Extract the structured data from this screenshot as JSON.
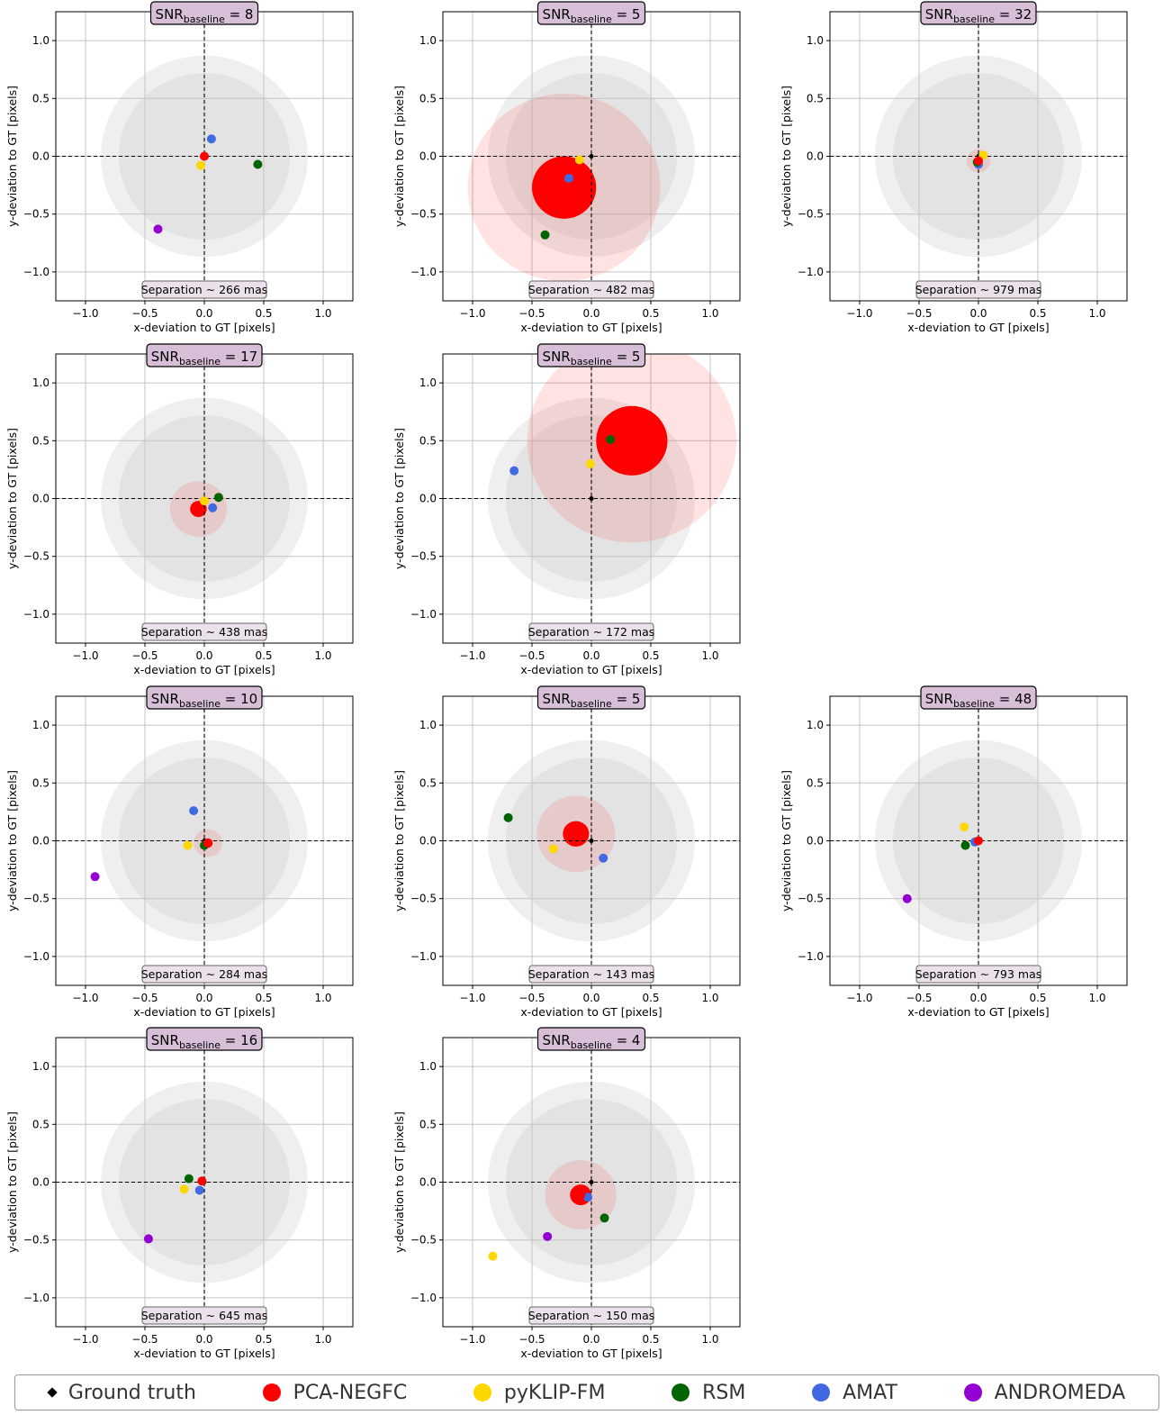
{
  "axis_labels": {
    "x": "x-deviation to GT [pixels]",
    "y": "y-deviation to GT [pixels]"
  },
  "tick_values": [
    -1.0,
    -0.5,
    0.0,
    0.5,
    1.0
  ],
  "tick_labels": [
    "−1.0",
    "−0.5",
    "0.0",
    "0.5",
    "1.0"
  ],
  "title_prefix": "SNR",
  "title_subscript": "baseline",
  "separation_prefix": "Separation ~ ",
  "separation_unit": " mas",
  "legend": [
    {
      "name": "Ground truth",
      "color": "#000000",
      "marker": "diamond"
    },
    {
      "name": "PCA-NEGFC",
      "color": "#ff0000",
      "marker": "circle"
    },
    {
      "name": "pyKLIP-FM",
      "color": "#ffd700",
      "marker": "circle"
    },
    {
      "name": "RSM",
      "color": "#006400",
      "marker": "circle"
    },
    {
      "name": "AMAT",
      "color": "#4169e1",
      "marker": "circle"
    },
    {
      "name": "ANDROMEDA",
      "color": "#9400d3",
      "marker": "circle"
    }
  ],
  "chart_data": [
    {
      "type": "scatter",
      "snr_baseline": 8,
      "separation_mas": 266,
      "xlim": [
        -1.25,
        1.25
      ],
      "ylim": [
        -1.25,
        1.25
      ],
      "points": {
        "PCA-NEGFC": [
          0.0,
          0.0
        ],
        "pyKLIP-FM": [
          -0.03,
          -0.08
        ],
        "RSM": [
          0.45,
          -0.07
        ],
        "AMAT": [
          0.06,
          0.15
        ],
        "ANDROMEDA": [
          -0.39,
          -0.63
        ]
      },
      "pca_sigma": 0.0,
      "pca_sigma3": 0.0
    },
    {
      "type": "scatter",
      "snr_baseline": 5,
      "separation_mas": 482,
      "xlim": [
        -1.25,
        1.25
      ],
      "ylim": [
        -1.25,
        1.25
      ],
      "points": {
        "PCA-NEGFC": [
          -0.23,
          -0.27
        ],
        "pyKLIP-FM": [
          -0.1,
          -0.03
        ],
        "RSM": [
          -0.39,
          -0.68
        ],
        "AMAT": [
          -0.19,
          -0.19
        ]
      },
      "pca_sigma": 0.27,
      "pca_sigma3": 0.81
    },
    {
      "type": "scatter",
      "snr_baseline": 32,
      "separation_mas": 979,
      "xlim": [
        -1.25,
        1.25
      ],
      "ylim": [
        -1.25,
        1.25
      ],
      "points": {
        "PCA-NEGFC": [
          0.0,
          -0.04
        ],
        "pyKLIP-FM": [
          0.04,
          0.01
        ],
        "RSM": [
          -0.01,
          -0.05
        ],
        "AMAT": [
          0.0,
          -0.07
        ]
      },
      "pca_sigma": 0.02,
      "pca_sigma3": 0.1
    },
    {
      "type": "scatter",
      "snr_baseline": 17,
      "separation_mas": 438,
      "xlim": [
        -1.25,
        1.25
      ],
      "ylim": [
        -1.25,
        1.25
      ],
      "points": {
        "PCA-NEGFC": [
          -0.05,
          -0.09
        ],
        "pyKLIP-FM": [
          0.0,
          -0.02
        ],
        "RSM": [
          0.12,
          0.01
        ],
        "AMAT": [
          0.07,
          -0.08
        ]
      },
      "pca_sigma": 0.07,
      "pca_sigma3": 0.24
    },
    {
      "type": "scatter",
      "snr_baseline": 5,
      "separation_mas": 172,
      "xlim": [
        -1.25,
        1.25
      ],
      "ylim": [
        -1.25,
        1.25
      ],
      "points": {
        "PCA-NEGFC": [
          0.34,
          0.5
        ],
        "pyKLIP-FM": [
          -0.01,
          0.3
        ],
        "RSM": [
          0.16,
          0.51
        ],
        "AMAT": [
          -0.65,
          0.24
        ]
      },
      "pca_sigma": 0.3,
      "pca_sigma3": 0.88
    },
    {
      "type": "scatter",
      "snr_baseline": 10,
      "separation_mas": 284,
      "xlim": [
        -1.25,
        1.25
      ],
      "ylim": [
        -1.25,
        1.25
      ],
      "points": {
        "PCA-NEGFC": [
          0.03,
          -0.02
        ],
        "pyKLIP-FM": [
          -0.14,
          -0.04
        ],
        "RSM": [
          0.0,
          -0.04
        ],
        "AMAT": [
          -0.09,
          0.26
        ],
        "ANDROMEDA": [
          -0.92,
          -0.31
        ]
      },
      "pca_sigma": 0.04,
      "pca_sigma3": 0.12
    },
    {
      "type": "scatter",
      "snr_baseline": 5,
      "separation_mas": 143,
      "xlim": [
        -1.25,
        1.25
      ],
      "ylim": [
        -1.25,
        1.25
      ],
      "points": {
        "PCA-NEGFC": [
          -0.13,
          0.06
        ],
        "pyKLIP-FM": [
          -0.32,
          -0.07
        ],
        "RSM": [
          -0.7,
          0.2
        ],
        "AMAT": [
          0.1,
          -0.15
        ]
      },
      "pca_sigma": 0.11,
      "pca_sigma3": 0.33
    },
    {
      "type": "scatter",
      "snr_baseline": 48,
      "separation_mas": 793,
      "xlim": [
        -1.25,
        1.25
      ],
      "ylim": [
        -1.25,
        1.25
      ],
      "points": {
        "PCA-NEGFC": [
          0.0,
          0.0
        ],
        "pyKLIP-FM": [
          -0.12,
          0.12
        ],
        "RSM": [
          -0.11,
          -0.04
        ],
        "AMAT": [
          -0.03,
          -0.01
        ],
        "ANDROMEDA": [
          -0.6,
          -0.5
        ]
      },
      "pca_sigma": 0.0,
      "pca_sigma3": 0.0
    },
    {
      "type": "scatter",
      "snr_baseline": 16,
      "separation_mas": 645,
      "xlim": [
        -1.25,
        1.25
      ],
      "ylim": [
        -1.25,
        1.25
      ],
      "points": {
        "PCA-NEGFC": [
          -0.02,
          0.01
        ],
        "pyKLIP-FM": [
          -0.17,
          -0.06
        ],
        "RSM": [
          -0.13,
          0.03
        ],
        "AMAT": [
          -0.04,
          -0.07
        ],
        "ANDROMEDA": [
          -0.47,
          -0.49
        ]
      },
      "pca_sigma": 0.0,
      "pca_sigma3": 0.0
    },
    {
      "type": "scatter",
      "snr_baseline": 4,
      "separation_mas": 150,
      "xlim": [
        -1.25,
        1.25
      ],
      "ylim": [
        -1.25,
        1.25
      ],
      "points": {
        "PCA-NEGFC": [
          -0.09,
          -0.11
        ],
        "pyKLIP-FM": [
          -0.83,
          -0.64
        ],
        "RSM": [
          0.11,
          -0.31
        ],
        "AMAT": [
          -0.03,
          -0.13
        ],
        "ANDROMEDA": [
          -0.37,
          -0.47
        ]
      },
      "pca_sigma": 0.09,
      "pca_sigma3": 0.3
    }
  ]
}
